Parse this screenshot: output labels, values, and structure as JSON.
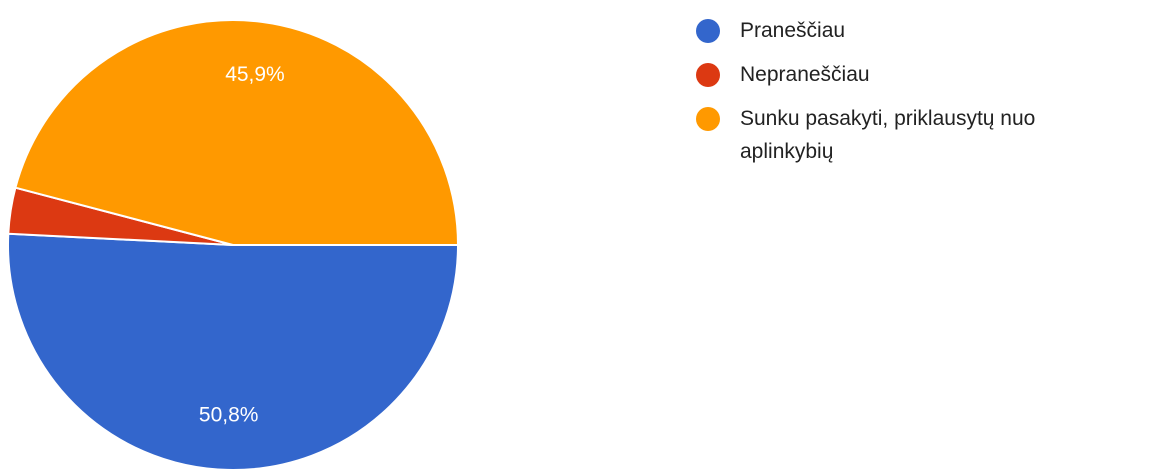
{
  "chart_data": {
    "type": "pie",
    "categories": [
      "Praneščiau",
      "Nepraneščiau",
      "Sunku pasakyti, priklausytų nuo aplinkybių"
    ],
    "values": [
      50.8,
      3.3,
      45.9
    ],
    "value_labels": [
      "50,8%",
      null,
      "45,9%"
    ],
    "colors": [
      "#3366cc",
      "#dc3912",
      "#ff9900"
    ],
    "legend": "right"
  }
}
